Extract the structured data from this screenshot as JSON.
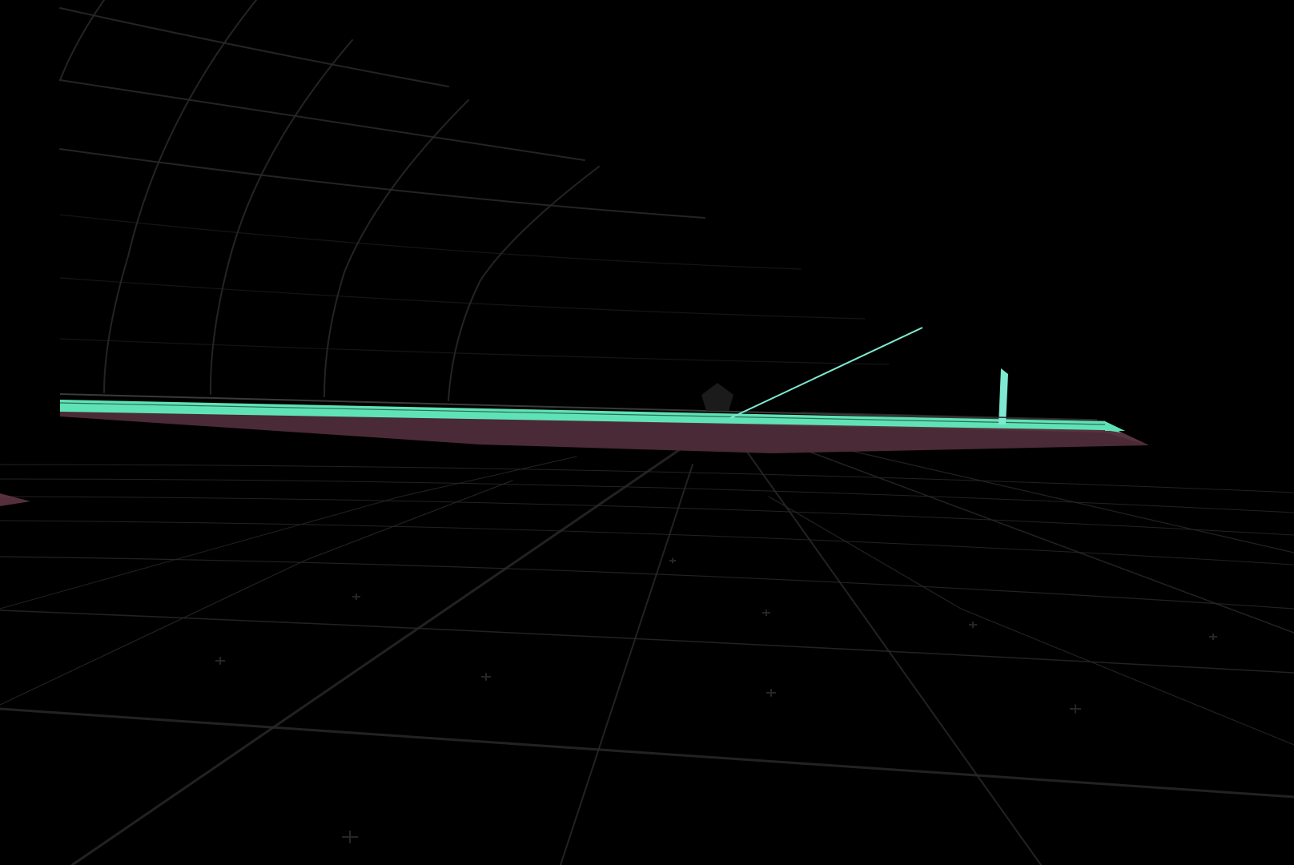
{
  "scene": {
    "background_color": "#000000",
    "grid_color": "#2a2a2a",
    "grid_marker_color": "#262626",
    "beam_top_color": "#5fe3b6",
    "beam_side_color": "#4a2a36",
    "accent_color": "#7fe8d0",
    "ghost_marker_color": "#1e1e1e",
    "icons": [
      "pentagon-marker-icon"
    ]
  }
}
